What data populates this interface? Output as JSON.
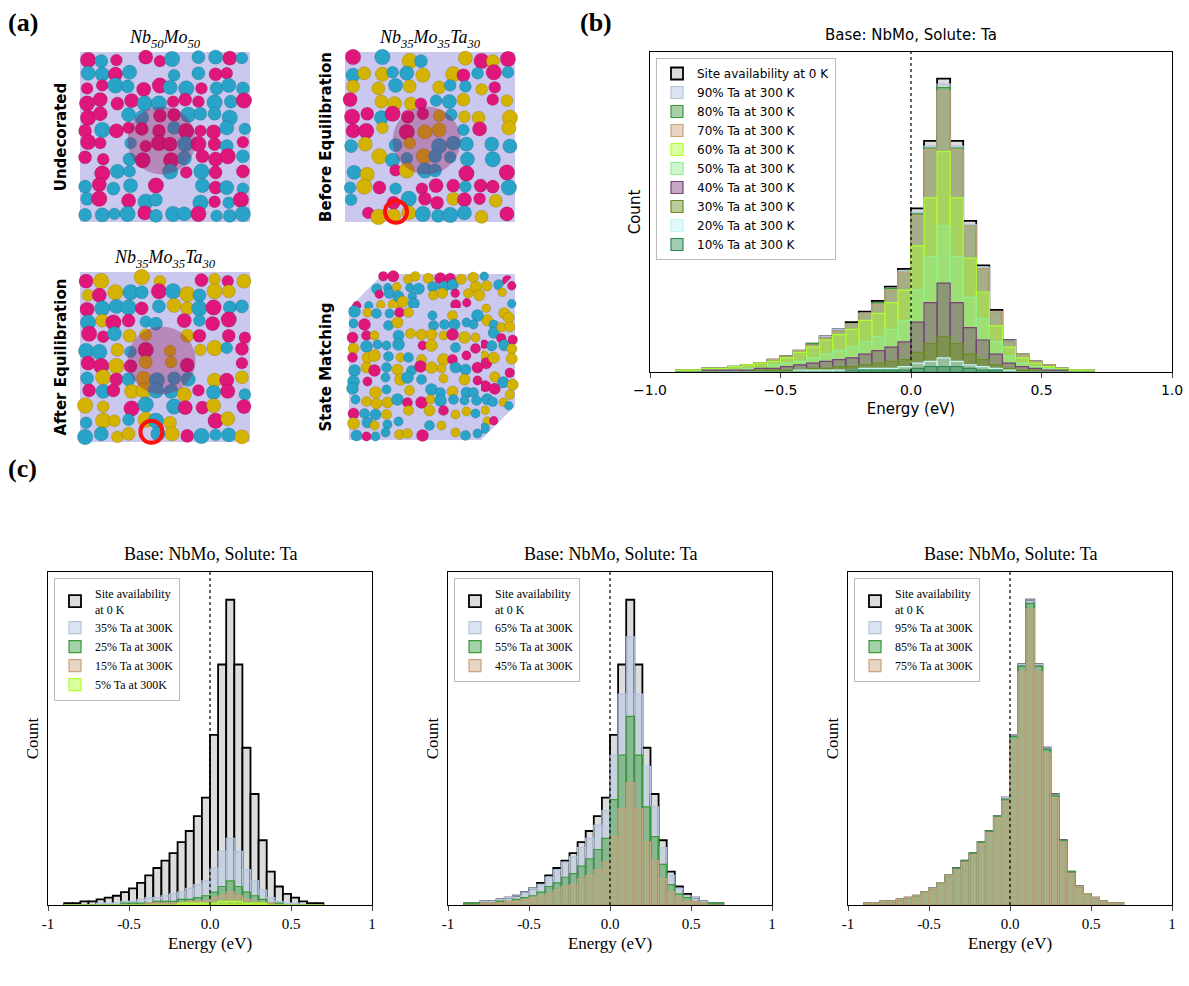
{
  "panel_a": {
    "panel": "(a)",
    "images": [
      {
        "title": "Nb50Mo50",
        "side_label": "Undecorated"
      },
      {
        "title": "Nb35Mo35Ta30",
        "side_label": "Before Equilibration"
      },
      {
        "title": "Nb35Mo35Ta30",
        "side_label": "After Equilibration"
      },
      {
        "side_label": "State Matching"
      }
    ]
  },
  "chart_data": [
    {
      "type": "histogram",
      "panel": "(b)",
      "title": "Base: NbMo, Solute: Ta",
      "x_label": "Energy (eV)",
      "y_label": "Count",
      "bins": [
        -0.9,
        -0.85,
        -0.8,
        -0.75,
        -0.7,
        -0.65,
        -0.6,
        -0.55,
        -0.5,
        -0.45,
        -0.4,
        -0.35,
        -0.3,
        -0.25,
        -0.2,
        -0.15,
        -0.1,
        -0.05,
        0,
        0.05,
        0.1,
        0.15,
        0.2,
        0.25,
        0.3,
        0.35,
        0.4,
        0.45,
        0.5,
        0.55,
        0.6,
        0.65,
        0.7
      ],
      "series": [
        {
          "name": "Site availability at 0 K",
          "color": "#d3d3d3",
          "values": [
            1,
            1,
            2,
            2,
            3,
            4,
            5,
            7,
            9,
            12,
            16,
            20,
            24,
            28,
            34,
            40,
            48,
            58,
            92,
            130,
            165,
            130,
            85,
            60,
            35,
            18,
            10,
            6,
            4,
            2,
            1,
            1
          ]
        },
        {
          "name": "90% Ta at 300 K",
          "color": "#b0c4de",
          "values": [
            1,
            1,
            2,
            2,
            3,
            4,
            5,
            7,
            9,
            12,
            16,
            20,
            24,
            27,
            33,
            39,
            47,
            57,
            90,
            127,
            162,
            127,
            83,
            59,
            34,
            18,
            10,
            6,
            4,
            2,
            1,
            1
          ]
        },
        {
          "name": "80% Ta at 300 K",
          "color": "#3a9a3a",
          "values": [
            1,
            1,
            2,
            2,
            3,
            4,
            5,
            7,
            9,
            12,
            16,
            19,
            23,
            27,
            33,
            39,
            47,
            56,
            89,
            126,
            160,
            126,
            82,
            58,
            34,
            17,
            10,
            6,
            4,
            2,
            1,
            1
          ]
        },
        {
          "name": "70% Ta at 300 K",
          "color": "#c8a27a",
          "values": [
            1,
            1,
            2,
            2,
            3,
            4,
            5,
            7,
            9,
            12,
            15,
            19,
            23,
            27,
            33,
            38,
            46,
            56,
            88,
            125,
            158,
            125,
            82,
            58,
            34,
            17,
            10,
            6,
            4,
            2,
            1,
            1
          ]
        },
        {
          "name": "60% Ta at 300 K",
          "color": "#adff2f",
          "values": [
            1,
            1,
            2,
            2,
            3,
            4,
            5,
            6,
            8,
            11,
            14,
            18,
            21,
            24,
            29,
            33,
            39,
            46,
            71,
            98,
            124,
            98,
            64,
            45,
            26,
            14,
            8,
            5,
            3,
            2,
            1,
            1
          ]
        },
        {
          "name": "50% Ta at 300 K",
          "color": "#90ee90",
          "values": [
            0,
            0,
            1,
            1,
            1,
            2,
            2,
            4,
            5,
            6,
            8,
            10,
            12,
            14,
            17,
            20,
            24,
            29,
            46,
            65,
            82,
            65,
            42,
            30,
            17,
            9,
            5,
            3,
            2,
            1,
            0,
            0
          ]
        },
        {
          "name": "40% Ta at 300 K",
          "color": "#7b3f7b",
          "values": [
            0,
            0,
            1,
            1,
            1,
            1,
            2,
            2,
            3,
            4,
            5,
            6,
            7,
            8,
            10,
            12,
            14,
            17,
            28,
            39,
            50,
            39,
            25,
            18,
            10,
            5,
            3,
            2,
            1,
            1,
            0,
            0
          ]
        },
        {
          "name": "30% Ta at 300 K",
          "color": "#6b8e23",
          "values": [
            0,
            0,
            0,
            0,
            0,
            0,
            1,
            1,
            1,
            1,
            2,
            2,
            3,
            3,
            4,
            5,
            6,
            7,
            11,
            16,
            20,
            16,
            10,
            7,
            4,
            2,
            1,
            1,
            0,
            0,
            0,
            0
          ]
        },
        {
          "name": "20% Ta at 300 K",
          "color": "#bff5f5",
          "values": [
            0,
            0,
            0,
            0,
            0,
            0,
            0,
            0,
            0,
            1,
            1,
            1,
            1,
            1,
            2,
            2,
            2,
            3,
            5,
            6,
            8,
            6,
            4,
            3,
            2,
            1,
            0,
            0,
            0,
            0,
            0,
            0
          ]
        },
        {
          "name": "10% Ta at 300 K",
          "color": "#2e8b57",
          "values": [
            0,
            0,
            0,
            0,
            0,
            0,
            0,
            0,
            0,
            0,
            0,
            0,
            0,
            1,
            1,
            1,
            1,
            1,
            2,
            3,
            3,
            3,
            2,
            1,
            1,
            0,
            0,
            0,
            0,
            0,
            0,
            0
          ]
        }
      ],
      "xlim": [
        -1,
        1
      ],
      "xticks": [
        {
          "value": -1,
          "label": "−1.0"
        },
        {
          "value": -0.5,
          "label": "−0.5"
        },
        {
          "value": 0,
          "label": "0.0"
        },
        0.5,
        {
          "value": 1,
          "label": "1.0"
        }
      ],
      "ylim": [
        0,
        180
      ],
      "yticks": [],
      "tick_labels": "x",
      "grid": false,
      "legend": "upper left",
      "vline": 0
    },
    {
      "type": "histogram",
      "panel": "(c)",
      "title": "Base: NbMo, Solute: Ta",
      "x_label": "Energy (eV)",
      "y_label": "Count",
      "bins": [
        -0.9,
        -0.85,
        -0.8,
        -0.75,
        -0.7,
        -0.65,
        -0.6,
        -0.55,
        -0.5,
        -0.45,
        -0.4,
        -0.35,
        -0.3,
        -0.25,
        -0.2,
        -0.15,
        -0.1,
        -0.05,
        0,
        0.05,
        0.1,
        0.15,
        0.2,
        0.25,
        0.3,
        0.35,
        0.4,
        0.45,
        0.5,
        0.55,
        0.6,
        0.65,
        0.7
      ],
      "series": [
        {
          "name": "Site availability at 0 K",
          "color": "#d3d3d3",
          "values": [
            1,
            1,
            2,
            2,
            3,
            4,
            5,
            7,
            9,
            12,
            16,
            20,
            24,
            28,
            34,
            40,
            48,
            58,
            92,
            130,
            165,
            130,
            85,
            60,
            35,
            18,
            10,
            6,
            4,
            2,
            1,
            1
          ]
        },
        {
          "name": "35% Ta at 300K",
          "color": "#b0c4de",
          "values": [
            0,
            0,
            0,
            0,
            1,
            1,
            1,
            2,
            2,
            3,
            4,
            4,
            5,
            6,
            7,
            9,
            11,
            13,
            20,
            29,
            36,
            29,
            19,
            13,
            8,
            4,
            2,
            1,
            1,
            0,
            0,
            0
          ]
        },
        {
          "name": "25% Ta at 300K",
          "color": "#3a9a3a",
          "values": [
            0,
            0,
            0,
            0,
            0,
            0,
            0,
            1,
            1,
            1,
            1,
            2,
            2,
            2,
            3,
            3,
            4,
            5,
            7,
            10,
            13,
            10,
            7,
            5,
            3,
            1,
            1,
            0,
            0,
            0,
            0,
            0
          ]
        },
        {
          "name": "15% Ta at 300K",
          "color": "#c8a27a",
          "values": [
            0,
            0,
            0,
            0,
            0,
            0,
            0,
            0,
            0,
            0,
            1,
            1,
            1,
            1,
            1,
            2,
            2,
            2,
            4,
            5,
            7,
            5,
            3,
            2,
            1,
            1,
            0,
            0,
            0,
            0,
            0,
            0
          ]
        },
        {
          "name": "5% Ta at 300K",
          "color": "#adff2f",
          "values": [
            0,
            0,
            0,
            0,
            0,
            0,
            0,
            0,
            0,
            0,
            0,
            0,
            0,
            0,
            1,
            1,
            1,
            1,
            1,
            2,
            2,
            2,
            1,
            1,
            1,
            0,
            0,
            0,
            0,
            0,
            0,
            0
          ]
        }
      ],
      "xlim": [
        -1,
        1
      ],
      "xticks": [
        -1,
        -0.5,
        {
          "value": 0,
          "label": "0.0"
        },
        0.5,
        1
      ],
      "ylim": [
        0,
        180
      ],
      "yticks": [],
      "tick_labels": "x",
      "grid": false,
      "legend": "upper left",
      "vline": 0
    },
    {
      "type": "histogram",
      "title": "Base: NbMo, Solute: Ta",
      "x_label": "Energy (eV)",
      "y_label": "Count",
      "bins": [
        -0.9,
        -0.85,
        -0.8,
        -0.75,
        -0.7,
        -0.65,
        -0.6,
        -0.55,
        -0.5,
        -0.45,
        -0.4,
        -0.35,
        -0.3,
        -0.25,
        -0.2,
        -0.15,
        -0.1,
        -0.05,
        0,
        0.05,
        0.1,
        0.15,
        0.2,
        0.25,
        0.3,
        0.35,
        0.4,
        0.45,
        0.5,
        0.55,
        0.6,
        0.65,
        0.7
      ],
      "series": [
        {
          "name": "Site availability at 0 K",
          "color": "#d3d3d3",
          "values": [
            1,
            1,
            2,
            2,
            3,
            4,
            5,
            7,
            9,
            12,
            16,
            20,
            24,
            28,
            34,
            40,
            48,
            58,
            92,
            130,
            165,
            130,
            85,
            60,
            35,
            18,
            10,
            6,
            4,
            2,
            1,
            1
          ]
        },
        {
          "name": "65% Ta at 300K",
          "color": "#b0c4de",
          "values": [
            1,
            1,
            2,
            2,
            3,
            4,
            5,
            7,
            9,
            11,
            15,
            19,
            23,
            26,
            31,
            36,
            43,
            51,
            81,
            114,
            145,
            114,
            75,
            53,
            31,
            16,
            9,
            5,
            4,
            2,
            1,
            1
          ]
        },
        {
          "name": "55% Ta at 300K",
          "color": "#3a9a3a",
          "values": [
            1,
            1,
            1,
            1,
            2,
            2,
            3,
            4,
            5,
            7,
            10,
            12,
            15,
            17,
            21,
            25,
            30,
            36,
            57,
            81,
            102,
            81,
            53,
            37,
            22,
            11,
            6,
            4,
            2,
            1,
            1,
            1
          ]
        },
        {
          "name": "45% Ta at 300K",
          "color": "#c8a27a",
          "values": [
            0,
            0,
            1,
            1,
            1,
            2,
            2,
            3,
            4,
            5,
            6,
            8,
            10,
            11,
            14,
            16,
            19,
            23,
            37,
            52,
            66,
            52,
            34,
            24,
            14,
            7,
            4,
            2,
            2,
            1,
            0,
            0
          ]
        }
      ],
      "xlim": [
        -1,
        1
      ],
      "xticks": [
        -1,
        -0.5,
        {
          "value": 0,
          "label": "0.0"
        },
        0.5,
        1
      ],
      "ylim": [
        0,
        180
      ],
      "yticks": [],
      "tick_labels": "x",
      "grid": false,
      "legend": "upper left",
      "vline": 0
    },
    {
      "type": "histogram",
      "title": "Base: NbMo, Solute: Ta",
      "x_label": "Energy (eV)",
      "y_label": "Count",
      "bins": [
        -0.9,
        -0.85,
        -0.8,
        -0.75,
        -0.7,
        -0.65,
        -0.6,
        -0.55,
        -0.5,
        -0.45,
        -0.4,
        -0.35,
        -0.3,
        -0.25,
        -0.2,
        -0.15,
        -0.1,
        -0.05,
        0,
        0.05,
        0.1,
        0.15,
        0.2,
        0.25,
        0.3,
        0.35,
        0.4,
        0.45,
        0.5,
        0.55,
        0.6,
        0.65,
        0.7
      ],
      "series": [
        {
          "name": "Site availability at 0 K",
          "color": "#d3d3d3",
          "values": [
            1,
            1,
            2,
            2,
            3,
            4,
            5,
            7,
            9,
            12,
            16,
            20,
            24,
            28,
            34,
            40,
            48,
            58,
            92,
            130,
            165,
            130,
            85,
            60,
            35,
            18,
            10,
            6,
            4,
            2,
            1,
            1
          ]
        },
        {
          "name": "95% Ta at 300K",
          "color": "#b0c4de",
          "values": [
            1,
            1,
            2,
            2,
            3,
            4,
            5,
            7,
            9,
            12,
            16,
            20,
            24,
            28,
            34,
            40,
            48,
            58,
            92,
            130,
            165,
            130,
            85,
            60,
            35,
            18,
            10,
            6,
            4,
            2,
            1,
            1
          ]
        },
        {
          "name": "85% Ta at 300K",
          "color": "#3a9a3a",
          "values": [
            1,
            1,
            2,
            2,
            3,
            4,
            5,
            7,
            9,
            12,
            16,
            20,
            24,
            28,
            34,
            40,
            48,
            57,
            91,
            129,
            163,
            129,
            84,
            59,
            35,
            18,
            10,
            6,
            4,
            2,
            1,
            1
          ]
        },
        {
          "name": "75% Ta at 300K",
          "color": "#c8a27a",
          "values": [
            1,
            1,
            2,
            2,
            3,
            4,
            5,
            7,
            9,
            12,
            16,
            19,
            23,
            27,
            33,
            39,
            47,
            56,
            89,
            126,
            160,
            126,
            82,
            58,
            34,
            17,
            10,
            6,
            4,
            2,
            1,
            1
          ]
        }
      ],
      "xlim": [
        -1,
        1
      ],
      "xticks": [
        -1,
        -0.5,
        {
          "value": 0,
          "label": "0.0"
        },
        0.5,
        1
      ],
      "ylim": [
        0,
        180
      ],
      "yticks": [],
      "tick_labels": "x",
      "grid": false,
      "legend": "upper left",
      "vline": 0
    }
  ]
}
